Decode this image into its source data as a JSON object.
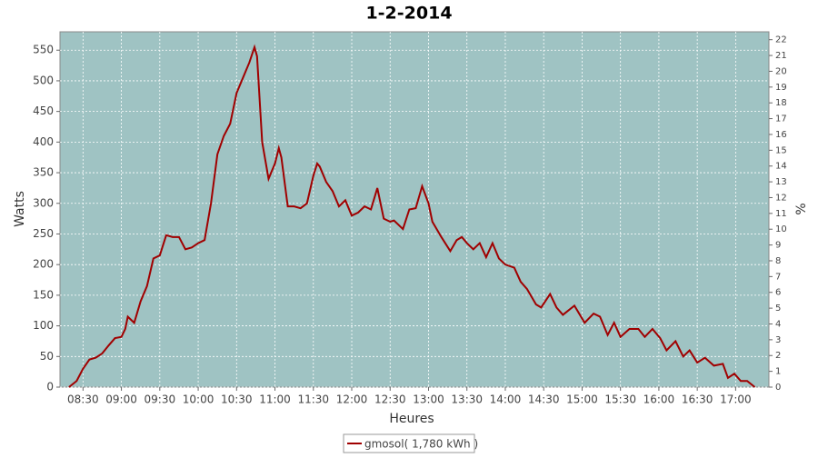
{
  "chart_data": {
    "type": "line",
    "title": "1-2-2014",
    "x_label": "Heures",
    "y_label": "Watts",
    "y2_label": "%",
    "x": [
      "08:19",
      "08:25",
      "08:30",
      "08:35",
      "08:40",
      "08:45",
      "08:50",
      "08:55",
      "09:00",
      "09:03",
      "09:05",
      "09:10",
      "09:15",
      "09:20",
      "09:25",
      "09:30",
      "09:35",
      "09:40",
      "09:45",
      "09:50",
      "09:55",
      "10:00",
      "10:05",
      "10:10",
      "10:15",
      "10:20",
      "10:25",
      "10:30",
      "10:35",
      "10:40",
      "10:44",
      "10:46",
      "10:50",
      "10:55",
      "11:00",
      "11:03",
      "11:05",
      "11:10",
      "11:15",
      "11:20",
      "11:25",
      "11:30",
      "11:33",
      "11:35",
      "11:40",
      "11:45",
      "11:50",
      "11:55",
      "12:00",
      "12:05",
      "12:10",
      "12:15",
      "12:20",
      "12:25",
      "12:30",
      "12:33",
      "12:40",
      "12:45",
      "12:50",
      "12:55",
      "13:00",
      "13:03",
      "13:10",
      "13:17",
      "13:22",
      "13:26",
      "13:30",
      "13:35",
      "13:40",
      "13:45",
      "13:50",
      "13:55",
      "14:00",
      "14:07",
      "14:12",
      "14:17",
      "14:24",
      "14:28",
      "14:35",
      "14:40",
      "14:45",
      "14:54",
      "15:02",
      "15:09",
      "15:14",
      "15:20",
      "15:25",
      "15:30",
      "15:37",
      "15:44",
      "15:49",
      "15:55",
      "16:01",
      "16:06",
      "16:13",
      "16:19",
      "16:24",
      "16:30",
      "16:36",
      "16:43",
      "16:50",
      "16:54",
      "16:59",
      "17:04",
      "17:09",
      "17:15"
    ],
    "series": [
      {
        "name": "gmosol( 1,780 kWh )",
        "color": "#a00000",
        "values": [
          0,
          10,
          30,
          45,
          48,
          55,
          68,
          80,
          82,
          95,
          115,
          105,
          140,
          165,
          210,
          215,
          248,
          245,
          245,
          225,
          228,
          235,
          240,
          300,
          380,
          410,
          430,
          480,
          505,
          530,
          555,
          540,
          400,
          340,
          365,
          390,
          375,
          295,
          295,
          292,
          300,
          345,
          365,
          360,
          335,
          320,
          295,
          305,
          280,
          285,
          295,
          290,
          325,
          275,
          270,
          272,
          258,
          290,
          292,
          328,
          300,
          270,
          245,
          222,
          240,
          245,
          235,
          225,
          235,
          212,
          235,
          210,
          200,
          195,
          172,
          160,
          135,
          130,
          152,
          130,
          118,
          133,
          105,
          120,
          115,
          85,
          105,
          82,
          95,
          95,
          82,
          95,
          80,
          60,
          75,
          50,
          60,
          40,
          48,
          35,
          38,
          15,
          22,
          10,
          10,
          0
        ]
      }
    ],
    "xlim": [
      "08:12",
      "17:26"
    ],
    "xticks": [
      "08:30",
      "09:00",
      "09:30",
      "10:00",
      "10:30",
      "11:00",
      "11:30",
      "12:00",
      "12:30",
      "13:00",
      "13:30",
      "14:00",
      "14:30",
      "15:00",
      "15:30",
      "16:00",
      "16:30",
      "17:00"
    ],
    "ylim": [
      0,
      580
    ],
    "yticks": [
      0,
      50,
      100,
      150,
      200,
      250,
      300,
      350,
      400,
      450,
      500,
      550
    ],
    "y2lim": [
      0,
      22.5
    ],
    "y2ticks": [
      0,
      1,
      2,
      3,
      4,
      5,
      6,
      7,
      8,
      9,
      10,
      11,
      12,
      13,
      14,
      15,
      16,
      17,
      18,
      19,
      20,
      21,
      22
    ],
    "grid": true,
    "legend": "bottom"
  }
}
